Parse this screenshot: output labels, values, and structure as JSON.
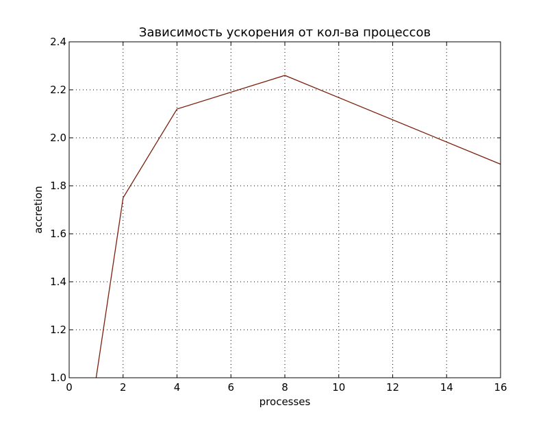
{
  "chart_data": {
    "type": "line",
    "title": "Зависимость ускорения от кол-ва процессов",
    "xlabel": "processes",
    "ylabel": "accretion",
    "xlim": [
      0,
      16
    ],
    "ylim": [
      1.0,
      2.4
    ],
    "xticks": [
      "0",
      "2",
      "4",
      "6",
      "8",
      "10",
      "12",
      "14",
      "16"
    ],
    "yticks": [
      "1.0",
      "1.2",
      "1.4",
      "1.6",
      "1.8",
      "2.0",
      "2.2",
      "2.4"
    ],
    "grid": true,
    "legend": "none",
    "series": [
      {
        "color": "#7a1f0a",
        "x": [
          1,
          2,
          4,
          8,
          16
        ],
        "y": [
          1.0,
          1.75,
          2.12,
          2.26,
          1.89
        ]
      }
    ]
  }
}
